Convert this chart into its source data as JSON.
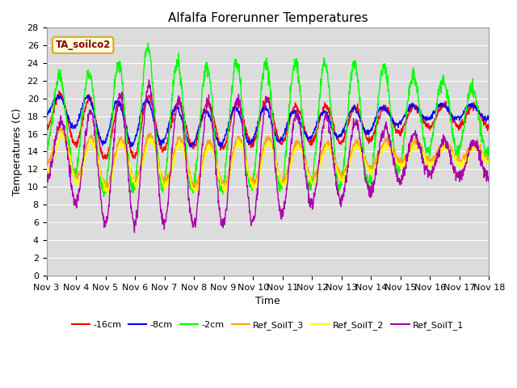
{
  "title": "Alfalfa Forerunner Temperatures",
  "xlabel": "Time",
  "ylabel": "Temperatures (C)",
  "ylim": [
    0,
    28
  ],
  "xlim": [
    0,
    15
  ],
  "annotation_text": "TA_soilco2",
  "legend_labels": [
    "-16cm",
    "-8cm",
    "-2cm",
    "Ref_SoilT_3",
    "Ref_SoilT_2",
    "Ref_SoilT_1"
  ],
  "line_colors": [
    "red",
    "blue",
    "#00ff00",
    "orange",
    "yellow",
    "#aa00aa"
  ],
  "background_color": "#dcdcdc",
  "xtick_labels": [
    "Nov 3",
    "Nov 4",
    "Nov 5",
    "Nov 6",
    "Nov 7",
    "Nov 8",
    "Nov 9",
    "Nov 10",
    "Nov 11",
    "Nov 12",
    "Nov 13",
    "Nov 14",
    "Nov 15",
    "Nov 16",
    "Nov 17",
    "Nov 18"
  ],
  "title_fontsize": 11,
  "axis_fontsize": 9,
  "tick_fontsize": 8
}
